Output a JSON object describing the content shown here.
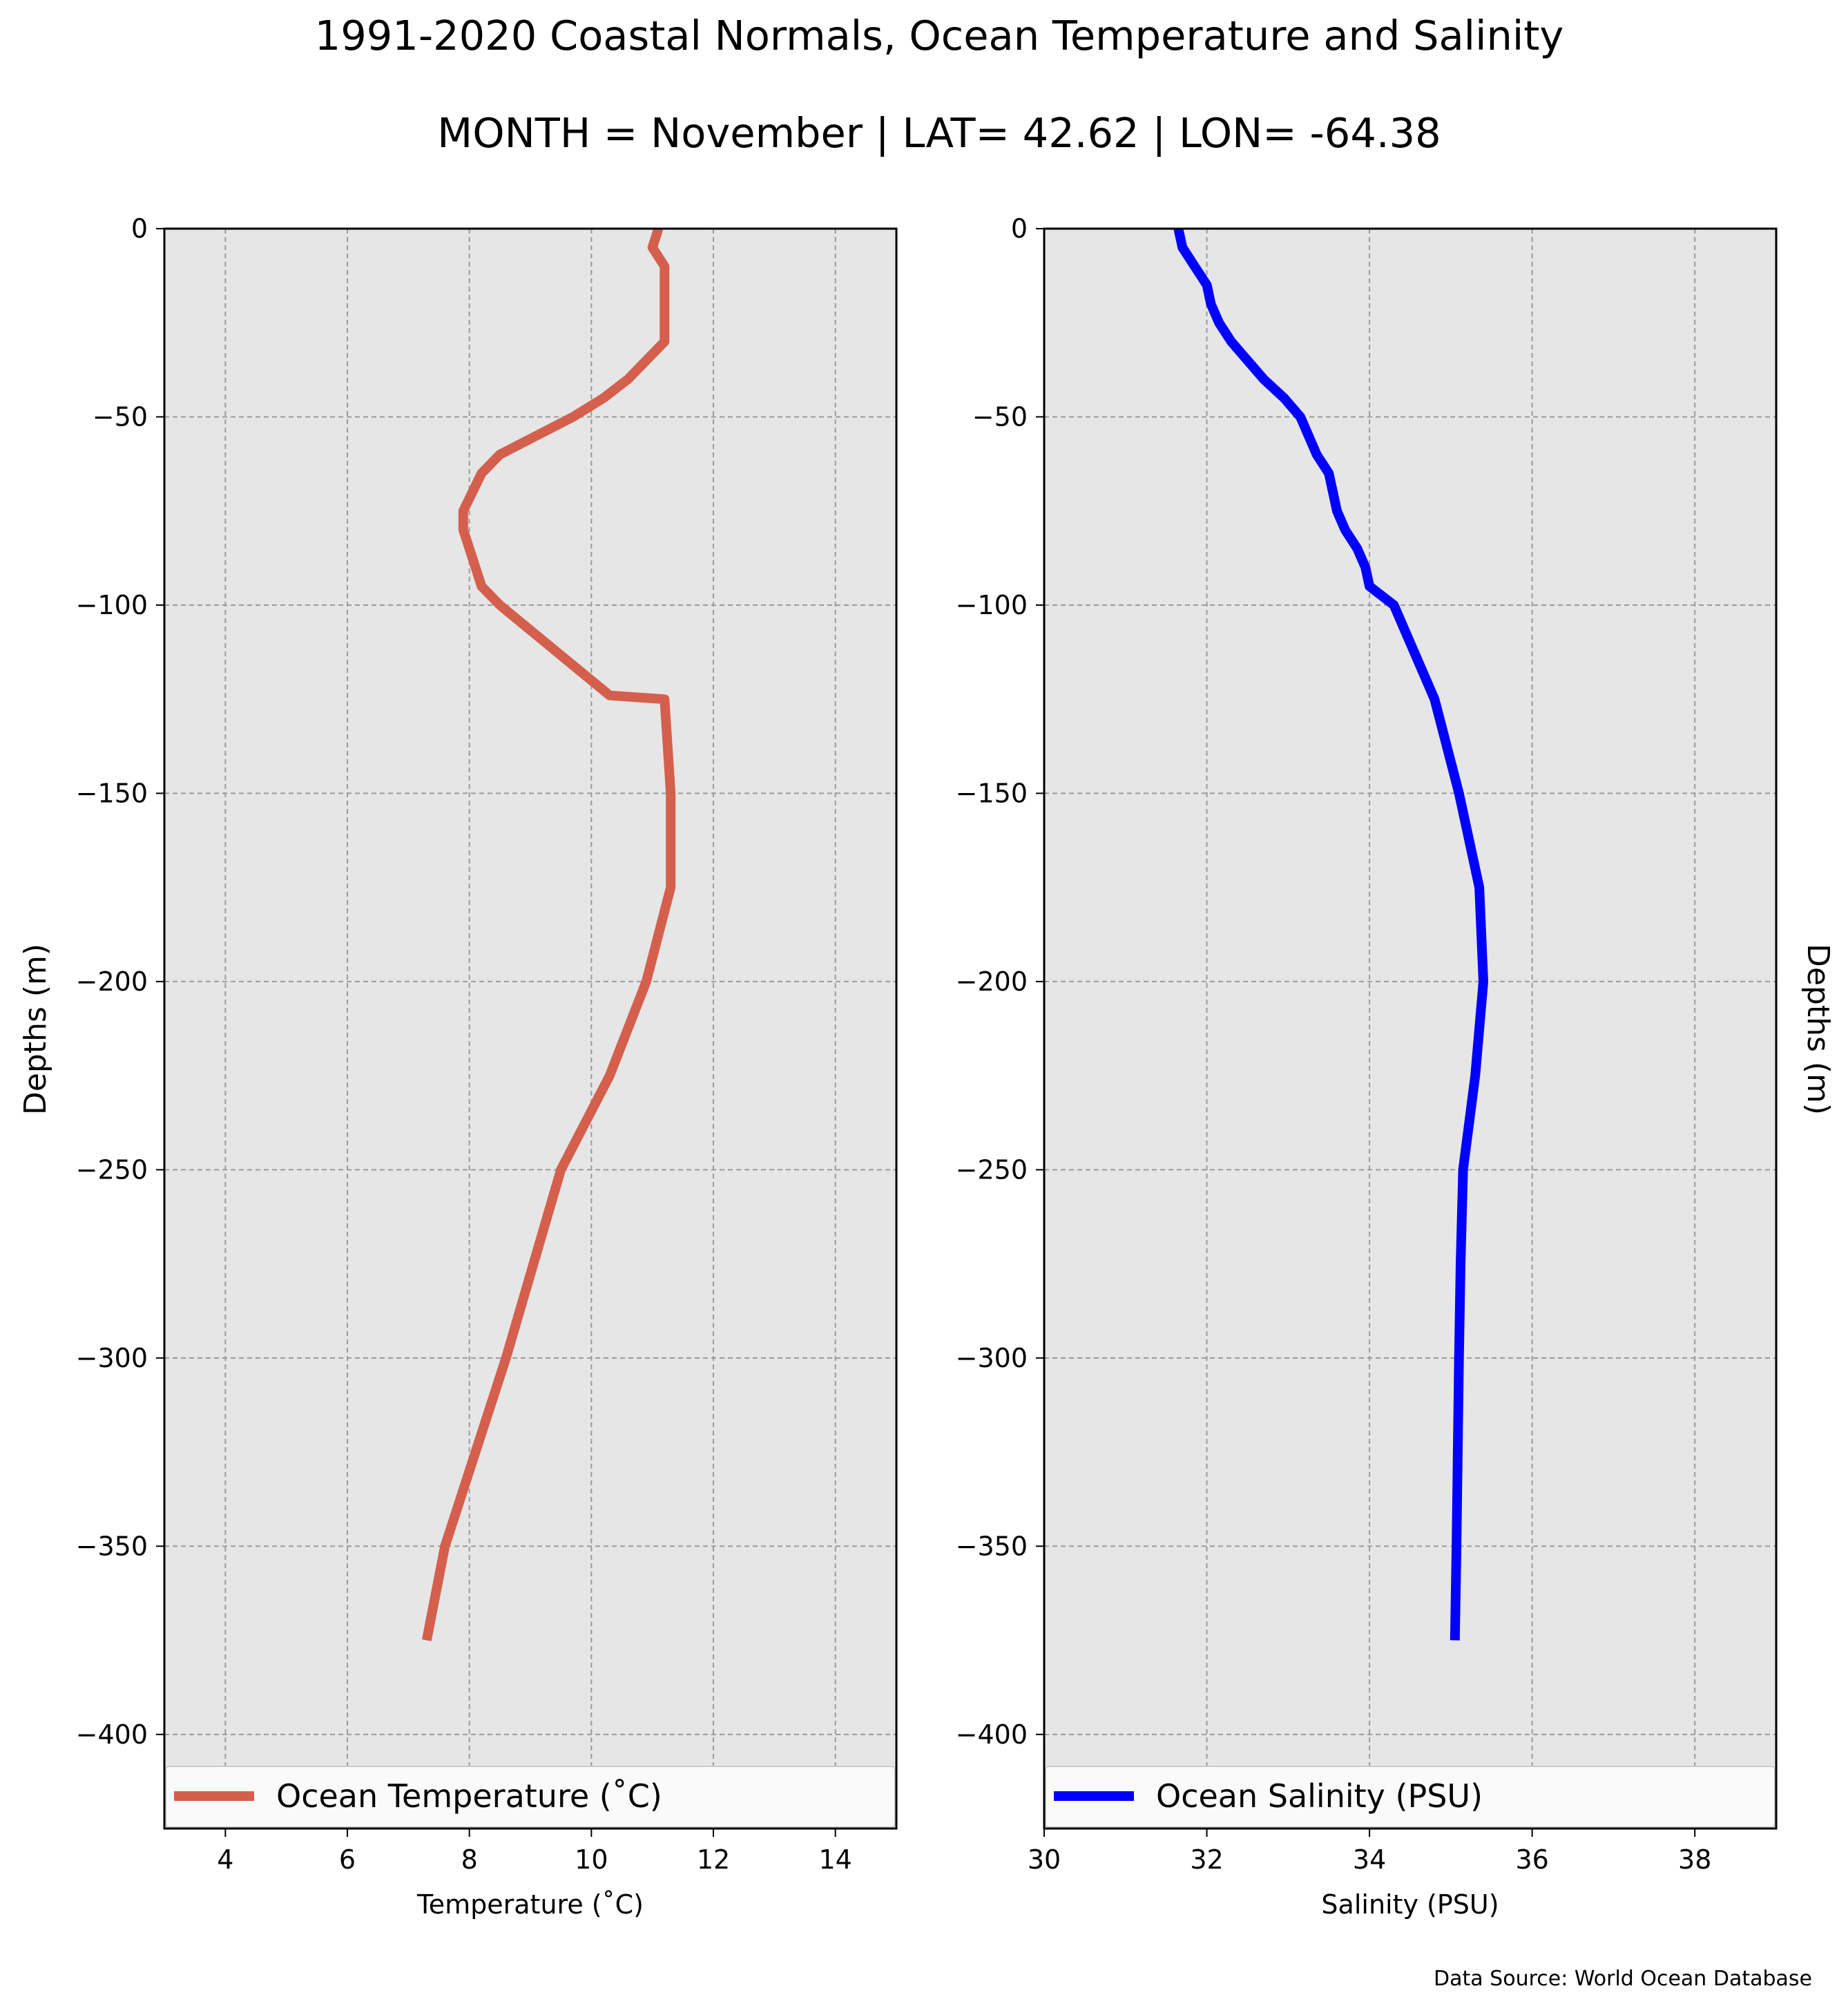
{
  "title_line1": "1991-2020 Coastal Normals, Ocean Temperature and Salinity",
  "title_line2": "MONTH = November | LAT= 42.62 | LON= -64.38",
  "source": "Data Source: World Ocean Database",
  "colors": {
    "temperature_line": "#d45f4d",
    "salinity_line": "#0000ff",
    "plot_background": "#e6e6e6",
    "grid": "#9a9a9a"
  },
  "chart_data": [
    {
      "type": "line",
      "ylabel": "Depths (m)",
      "xlabel": "Temperature (˚C)",
      "xlim": [
        3,
        15
      ],
      "ylim": [
        -425,
        0
      ],
      "xticks": [
        4,
        6,
        8,
        10,
        12,
        14
      ],
      "xtick_labels": [
        "4",
        "6",
        "8",
        "10",
        "12",
        "14"
      ],
      "yticks": [
        0,
        -50,
        -100,
        -150,
        -200,
        -250,
        -300,
        -350,
        -400
      ],
      "ytick_labels": [
        "0",
        "−50",
        "−100",
        "−150",
        "−200",
        "−250",
        "−300",
        "−350",
        "−400"
      ],
      "grid": true,
      "legend_placement": "bottom",
      "series": [
        {
          "name": "Ocean Temperature (˚C)",
          "x": [
            11.1,
            11.0,
            11.2,
            11.2,
            11.2,
            11.2,
            11.2,
            10.9,
            10.6,
            10.2,
            9.7,
            9.1,
            8.5,
            8.2,
            7.9,
            7.9,
            8.0,
            8.1,
            8.2,
            8.5,
            9.4,
            10.3,
            11.2,
            11.3,
            11.3,
            10.9,
            10.3,
            9.5,
            8.6,
            8.1,
            7.6,
            7.3
          ],
          "y": [
            0,
            -5,
            -10,
            -15,
            -20,
            -25,
            -30,
            -35,
            -40,
            -45,
            -50,
            -55,
            -60,
            -65,
            -75,
            -80,
            -85,
            -90,
            -95,
            -100,
            -112,
            -124,
            -125,
            -150,
            -175,
            -200,
            -225,
            -250,
            -300,
            -325,
            -350,
            -375
          ]
        }
      ]
    },
    {
      "type": "line",
      "ylabel": "Depths (m)",
      "xlabel": "Salinity (PSU)",
      "xlim": [
        30,
        39
      ],
      "ylim": [
        -425,
        0
      ],
      "xticks": [
        30,
        32,
        34,
        36,
        38
      ],
      "xtick_labels": [
        "30",
        "32",
        "34",
        "36",
        "38"
      ],
      "yticks": [
        0,
        -50,
        -100,
        -150,
        -200,
        -250,
        -300,
        -350,
        -400
      ],
      "ytick_labels": [
        "0",
        "−50",
        "−100",
        "−150",
        "−200",
        "−250",
        "−300",
        "−350",
        "−400"
      ],
      "grid": true,
      "legend_placement": "bottom",
      "series": [
        {
          "name": "Ocean Salinity (PSU)",
          "x": [
            31.65,
            31.7,
            31.85,
            32.0,
            32.05,
            32.15,
            32.3,
            32.5,
            32.7,
            32.95,
            33.15,
            33.25,
            33.35,
            33.5,
            33.6,
            33.7,
            33.85,
            33.95,
            34.0,
            34.3,
            34.8,
            35.1,
            35.35,
            35.4,
            35.3,
            35.15,
            35.12,
            35.1,
            35.07,
            35.05
          ],
          "y": [
            0,
            -5,
            -10,
            -15,
            -20,
            -25,
            -30,
            -35,
            -40,
            -45,
            -50,
            -55,
            -60,
            -65,
            -75,
            -80,
            -85,
            -90,
            -95,
            -100,
            -125,
            -150,
            -175,
            -200,
            -225,
            -250,
            -275,
            -300,
            -350,
            -375
          ]
        }
      ]
    }
  ]
}
